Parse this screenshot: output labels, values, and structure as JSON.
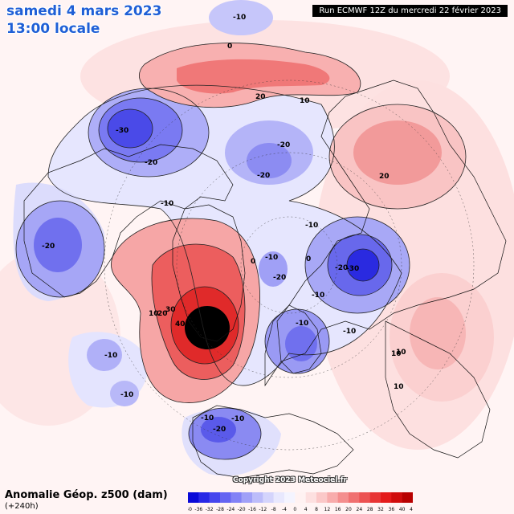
{
  "header": {
    "date": "samedi 4 mars 2023",
    "time": "13:00 locale",
    "run": "Run ECMWF 12Z du mercredi 22 février 2023"
  },
  "footer": {
    "label": "Anomalie Géop. z500 (dam)",
    "lead": "(+240h)",
    "copyright": "Copyright 2023 Meteociel.fr"
  },
  "legend": {
    "ticks": [
      "-40",
      "-36",
      "-32",
      "-28",
      "-24",
      "-20",
      "-16",
      "-12",
      "-8",
      "-4",
      "0",
      "4",
      "8",
      "12",
      "16",
      "20",
      "24",
      "28",
      "32",
      "36",
      "40",
      "44"
    ],
    "colors": [
      "#0a0ad8",
      "#2828e6",
      "#4646ee",
      "#6464f2",
      "#8282f6",
      "#a0a0f8",
      "#bcbcfa",
      "#d4d4fc",
      "#e8e8fe",
      "#f4f4ff",
      "#fff2f2",
      "#fde0e0",
      "#fbc8c8",
      "#f8acac",
      "#f48e8e",
      "#f07070",
      "#ec5252",
      "#e83434",
      "#e41a1a",
      "#d00c0c",
      "#b80000"
    ]
  },
  "map_labels": [
    {
      "text": "-10"
    },
    {
      "text": "0"
    },
    {
      "text": "-30"
    },
    {
      "text": "-20"
    },
    {
      "text": "20"
    },
    {
      "text": "10"
    },
    {
      "text": "-20"
    },
    {
      "text": "-20"
    },
    {
      "text": "20"
    },
    {
      "text": "-10"
    },
    {
      "text": "-20"
    },
    {
      "text": "-10"
    },
    {
      "text": "-20"
    },
    {
      "text": "-10"
    },
    {
      "text": "0"
    },
    {
      "text": "-20"
    },
    {
      "text": "-30"
    },
    {
      "text": "0"
    },
    {
      "text": "-10"
    },
    {
      "text": "10"
    },
    {
      "text": "10"
    },
    {
      "text": "20"
    },
    {
      "text": "30"
    },
    {
      "text": "40"
    },
    {
      "text": "-10"
    },
    {
      "text": "-10"
    },
    {
      "text": "10"
    },
    {
      "text": "10"
    },
    {
      "text": "-10"
    },
    {
      "text": "-10"
    },
    {
      "text": "-10"
    },
    {
      "text": "-20"
    },
    {
      "text": "-10"
    }
  ]
}
